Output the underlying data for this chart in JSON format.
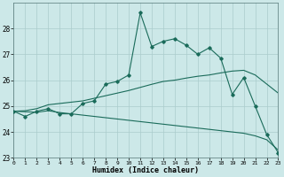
{
  "xlabel": "Humidex (Indice chaleur)",
  "bg_color": "#cce8e8",
  "grid_color": "#aacccc",
  "line_color": "#1a6b5a",
  "x_values": [
    0,
    1,
    2,
    3,
    4,
    5,
    6,
    7,
    8,
    9,
    10,
    11,
    12,
    13,
    14,
    15,
    16,
    17,
    18,
    19,
    20,
    21,
    22,
    23
  ],
  "line1": [
    24.8,
    24.6,
    24.8,
    24.9,
    24.7,
    24.7,
    25.1,
    25.2,
    25.85,
    25.95,
    26.2,
    28.6,
    27.3,
    27.5,
    27.6,
    27.35,
    27.0,
    27.25,
    26.85,
    25.45,
    26.1,
    25.0,
    23.9,
    23.2
  ],
  "line2": [
    24.8,
    24.82,
    24.9,
    25.05,
    25.1,
    25.15,
    25.2,
    25.3,
    25.4,
    25.5,
    25.6,
    25.72,
    25.84,
    25.95,
    26.0,
    26.08,
    26.15,
    26.2,
    26.28,
    26.35,
    26.38,
    26.2,
    25.85,
    25.5
  ],
  "line3": [
    24.8,
    24.78,
    24.76,
    24.82,
    24.75,
    24.7,
    24.65,
    24.6,
    24.55,
    24.5,
    24.45,
    24.4,
    24.35,
    24.3,
    24.25,
    24.2,
    24.15,
    24.1,
    24.05,
    24.0,
    23.95,
    23.85,
    23.7,
    23.3
  ],
  "ylim": [
    23.0,
    29.0
  ],
  "yticks": [
    23,
    24,
    25,
    26,
    27,
    28
  ],
  "xlim": [
    0,
    23
  ],
  "figsize": [
    3.2,
    2.0
  ],
  "dpi": 100
}
